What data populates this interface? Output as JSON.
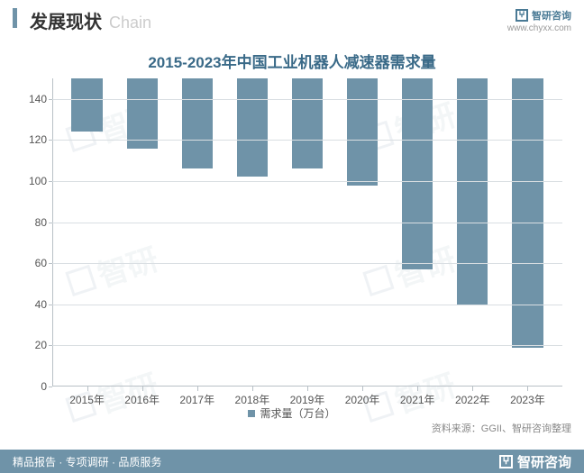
{
  "header": {
    "title_cn": "发展现状",
    "title_en": "Chain",
    "brand": "智研咨询",
    "url": "www.chyxx.com"
  },
  "chart": {
    "type": "bar",
    "title": "2015-2023年中国工业机器人减速器需求量",
    "title_color": "#3a6a88",
    "title_fontsize": 17,
    "categories": [
      "2015年",
      "2016年",
      "2017年",
      "2018年",
      "2019年",
      "2020年",
      "2021年",
      "2022年",
      "2023年"
    ],
    "values": [
      26,
      34,
      44,
      48,
      44,
      52,
      93,
      110,
      131
    ],
    "bar_color": "#6f93a8",
    "background_color": "#ffffff",
    "grid_color": "#d9dee2",
    "axis_color": "#b8c0c6",
    "label_fontsize": 12,
    "label_color": "#555555",
    "ylim": [
      0,
      150
    ],
    "ytick_step": 20,
    "yticks": [
      0,
      20,
      40,
      60,
      80,
      100,
      120,
      140
    ],
    "bar_width": 0.56,
    "legend_label": "需求量（万台）",
    "source": "资料来源：GGII、智研咨询整理"
  },
  "footer": {
    "left": "精品报告 · 专项调研 · 品质服务",
    "brand": "智研咨询"
  },
  "watermark": "智研"
}
